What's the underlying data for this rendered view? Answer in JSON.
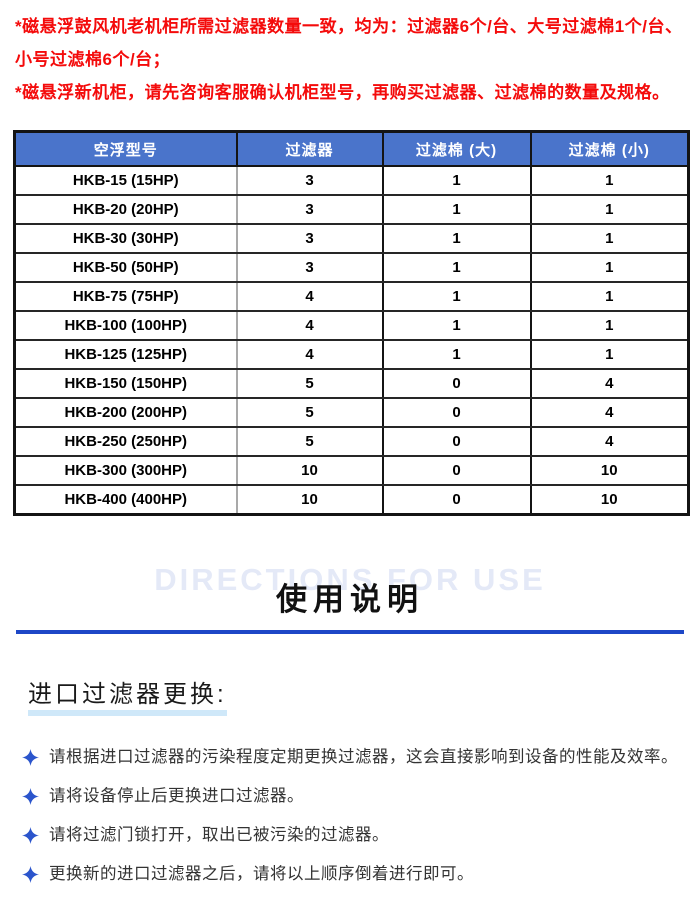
{
  "colors": {
    "note_red": "#f40b0b",
    "table_header_blue": "#4a74cb",
    "divider_blue": "#1d47c7",
    "bullet_star_blue": "#2b55cc",
    "heading_underline_blue": "#cfe8f9",
    "watermark_gray_blue": "#e4e9f7"
  },
  "notes": {
    "line1": "*磁悬浮鼓风机老机柜所需过滤器数量一致，均为：过滤器6个/台、大号过滤棉1个/台、小号过滤棉6个/台；",
    "line2": "*磁悬浮新机柜，请先咨询客服确认机柜型号，再购买过滤器、过滤棉的数量及规格。"
  },
  "table": {
    "headers": [
      "空浮型号",
      "过滤器",
      "过滤棉 (大)",
      "过滤棉 (小)"
    ],
    "rows": [
      [
        "HKB-15 (15HP)",
        "3",
        "1",
        "1"
      ],
      [
        "HKB-20 (20HP)",
        "3",
        "1",
        "1"
      ],
      [
        "HKB-30 (30HP)",
        "3",
        "1",
        "1"
      ],
      [
        "HKB-50 (50HP)",
        "3",
        "1",
        "1"
      ],
      [
        "HKB-75 (75HP)",
        "4",
        "1",
        "1"
      ],
      [
        "HKB-100 (100HP)",
        "4",
        "1",
        "1"
      ],
      [
        "HKB-125 (125HP)",
        "4",
        "1",
        "1"
      ],
      [
        "HKB-150 (150HP)",
        "5",
        "0",
        "4"
      ],
      [
        "HKB-200 (200HP)",
        "5",
        "0",
        "4"
      ],
      [
        "HKB-250 (250HP)",
        "5",
        "0",
        "4"
      ],
      [
        "HKB-300 (300HP)",
        "10",
        "0",
        "10"
      ],
      [
        "HKB-400 (400HP)",
        "10",
        "0",
        "10"
      ]
    ]
  },
  "usage": {
    "watermark": "DIRECTIONS FOR USE",
    "title": "使用说明",
    "subsection": "进口过滤器更换:",
    "items": [
      "请根据进口过滤器的污染程度定期更换过滤器，这会直接影响到设备的性能及效率。",
      "请将设备停止后更换进口过滤器。",
      "请将过滤门锁打开，取出已被污染的过滤器。",
      "更换新的进口过滤器之后，请将以上顺序倒着进行即可。"
    ]
  }
}
